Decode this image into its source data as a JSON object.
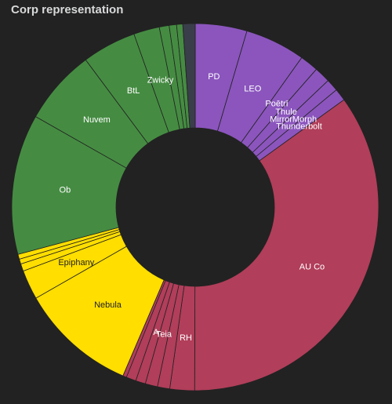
{
  "panel": {
    "title": "Corp representation"
  },
  "chart_data": {
    "type": "pie",
    "donut": true,
    "title": "Corp representation",
    "slices": [
      {
        "name": "PD",
        "value": 4.2,
        "color": "#8b55bd",
        "label_color": "#ffffff",
        "show_label": true
      },
      {
        "name": "LEO",
        "value": 4.9,
        "color": "#8b55bd",
        "label_color": "#ffffff",
        "show_label": true
      },
      {
        "name": "Poētrī",
        "value": 1.5,
        "color": "#8b55bd",
        "label_color": "#ffffff",
        "show_label": true
      },
      {
        "name": "Thule",
        "value": 1.3,
        "color": "#8b55bd",
        "label_color": "#ffffff",
        "show_label": true
      },
      {
        "name": "MirrorMorph",
        "value": 1.0,
        "color": "#8b55bd",
        "label_color": "#ffffff",
        "show_label": true
      },
      {
        "name": "Thunderbolt",
        "value": 1.0,
        "color": "#8b55bd",
        "label_color": "#ffffff",
        "show_label": true
      },
      {
        "name": "AU Co",
        "value": 32.3,
        "color": "#b13e5a",
        "label_color": "#ffffff",
        "show_label": true
      },
      {
        "name": "RH",
        "value": 2.0,
        "color": "#b13e5a",
        "label_color": "#ffffff",
        "show_label": true
      },
      {
        "name": "",
        "value": 1.0,
        "color": "#b13e5a",
        "label_color": "#ffffff",
        "show_label": false
      },
      {
        "name": "Teia",
        "value": 1.0,
        "color": "#b13e5a",
        "label_color": "#ffffff",
        "show_label": true
      },
      {
        "name": "A",
        "value": 0.8,
        "color": "#b13e5a",
        "label_color": "#ffffff",
        "show_label": true
      },
      {
        "name": "",
        "value": 0.8,
        "color": "#b13e5a",
        "label_color": "#ffffff",
        "show_label": false
      },
      {
        "name": "",
        "value": 0.3,
        "color": "#b13e5a",
        "label_color": "#ffffff",
        "show_label": false
      },
      {
        "name": "Nebula",
        "value": 9.5,
        "color": "#ffde00",
        "label_color": "#222222",
        "show_label": true
      },
      {
        "name": "Epiphany",
        "value": 2.4,
        "color": "#ffde00",
        "label_color": "#222222",
        "show_label": true
      },
      {
        "name": "",
        "value": 0.6,
        "color": "#ffde00",
        "label_color": "#222222",
        "show_label": false
      },
      {
        "name": "",
        "value": 0.4,
        "color": "#ffde00",
        "label_color": "#222222",
        "show_label": false
      },
      {
        "name": "",
        "value": 0.4,
        "color": "#ffde00",
        "label_color": "#222222",
        "show_label": false
      },
      {
        "name": "Ob",
        "value": 11.4,
        "color": "#458c42",
        "label_color": "#ffffff",
        "show_label": true
      },
      {
        "name": "Nuvem",
        "value": 6.1,
        "color": "#458c42",
        "label_color": "#ffffff",
        "show_label": true
      },
      {
        "name": "BtL",
        "value": 4.4,
        "color": "#458c42",
        "label_color": "#ffffff",
        "show_label": true
      },
      {
        "name": "Zwicky",
        "value": 2.1,
        "color": "#458c42",
        "label_color": "#ffffff",
        "show_label": true
      },
      {
        "name": "",
        "value": 0.8,
        "color": "#458c42",
        "label_color": "#ffffff",
        "show_label": false
      },
      {
        "name": "",
        "value": 0.6,
        "color": "#458c42",
        "label_color": "#ffffff",
        "show_label": false
      },
      {
        "name": "",
        "value": 0.5,
        "color": "#458c42",
        "label_color": "#ffffff",
        "show_label": false
      },
      {
        "name": "",
        "value": 1.0,
        "color": "#3a3d4a",
        "label_color": "#ffffff",
        "show_label": false
      }
    ]
  }
}
